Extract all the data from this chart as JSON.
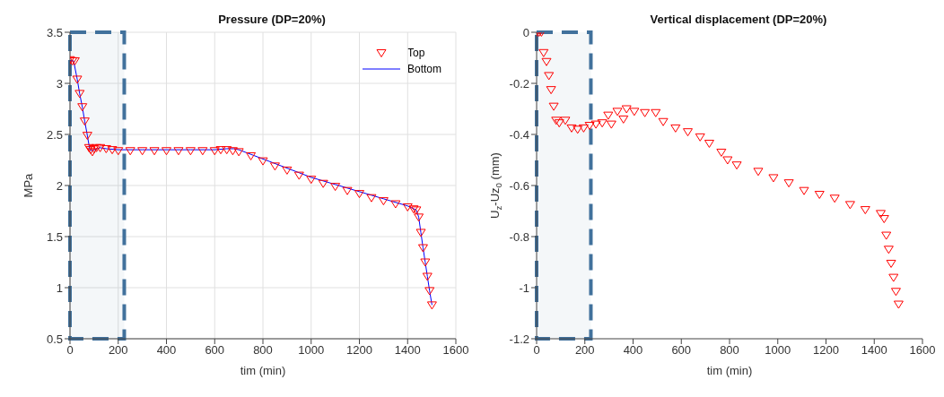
{
  "chart_data": [
    {
      "type": "scatter",
      "title": "Pressure (DP=20%)",
      "xlabel": "tim (min)",
      "ylabel": "MPa",
      "xlim": [
        0,
        1600
      ],
      "xticks": [
        0,
        200,
        400,
        600,
        800,
        1000,
        1200,
        1400,
        1600
      ],
      "ylim": [
        0.5,
        3.5
      ],
      "yticks": [
        0.5,
        1,
        1.5,
        2,
        2.5,
        3,
        3.5
      ],
      "grid": true,
      "legend": "top right",
      "bands": [
        {
          "axis": "x",
          "from": 0,
          "to": 225,
          "color": "#41719c"
        }
      ],
      "series": [
        {
          "name": "Top",
          "marker": "triangle",
          "color": "#ff0000",
          "x": [
            0,
            10,
            20,
            30,
            40,
            51,
            61,
            72,
            79,
            86,
            93,
            100,
            110,
            125,
            150,
            175,
            200,
            250,
            300,
            350,
            400,
            450,
            500,
            550,
            600,
            625,
            650,
            675,
            700,
            750,
            800,
            850,
            900,
            950,
            1000,
            1050,
            1100,
            1150,
            1200,
            1250,
            1300,
            1350,
            1400,
            1425,
            1436,
            1446,
            1455,
            1464,
            1473,
            1482,
            1491,
            1501
          ],
          "values": [
            3.23,
            3.22,
            3.22,
            3.04,
            2.9,
            2.77,
            2.63,
            2.49,
            2.37,
            2.35,
            2.33,
            2.36,
            2.37,
            2.37,
            2.36,
            2.35,
            2.34,
            2.34,
            2.34,
            2.34,
            2.34,
            2.34,
            2.34,
            2.34,
            2.34,
            2.35,
            2.35,
            2.34,
            2.33,
            2.29,
            2.24,
            2.19,
            2.15,
            2.1,
            2.06,
            2.02,
            1.99,
            1.95,
            1.92,
            1.88,
            1.85,
            1.82,
            1.79,
            1.77,
            1.76,
            1.69,
            1.54,
            1.39,
            1.25,
            1.11,
            0.97,
            0.83
          ]
        },
        {
          "name": "Bottom",
          "type": "line",
          "marker": "none",
          "color": "#0000ff",
          "x": [
            0,
            15,
            30,
            40,
            51,
            61,
            72,
            82,
            93,
            100,
            125,
            150,
            200,
            300,
            400,
            500,
            600,
            650,
            680,
            700,
            800,
            900,
            1000,
            1100,
            1200,
            1300,
            1400,
            1436,
            1446,
            1455,
            1464,
            1473,
            1482,
            1491,
            1501
          ],
          "values": [
            3.22,
            3.22,
            3.04,
            2.9,
            2.77,
            2.63,
            2.49,
            2.35,
            2.34,
            2.35,
            2.37,
            2.36,
            2.35,
            2.35,
            2.35,
            2.35,
            2.35,
            2.36,
            2.36,
            2.35,
            2.26,
            2.17,
            2.08,
            2.01,
            1.94,
            1.87,
            1.8,
            1.76,
            1.69,
            1.54,
            1.39,
            1.25,
            1.11,
            0.97,
            0.83
          ]
        }
      ]
    },
    {
      "type": "scatter",
      "title": "Vertical displacement (DP=20%)",
      "xlabel": "tim (min)",
      "ylabel": "U$_{z}$-Uz$_{0}$ (mm)",
      "xlim": [
        0,
        1600
      ],
      "xticks": [
        0,
        200,
        400,
        600,
        800,
        1000,
        1200,
        1400,
        1600
      ],
      "ylim": [
        -1.2,
        0
      ],
      "yticks": [
        -1.2,
        -1,
        -0.8,
        -0.6,
        -0.4,
        -0.2,
        0
      ],
      "marker": "triangle",
      "bands": [
        {
          "axis": "x",
          "from": 0,
          "to": 225,
          "color": "#41719c"
        }
      ],
      "series": [
        {
          "color": "#ff0000",
          "x": [
            0,
            10,
            20,
            29,
            41,
            51,
            60,
            71,
            81,
            94,
            119,
            145,
            170,
            195,
            220,
            246,
            272,
            297,
            310,
            335,
            360,
            373,
            405,
            449,
            494,
            525,
            576,
            627,
            678,
            716,
            766,
            792,
            830,
            919,
            982,
            1046,
            1109,
            1173,
            1236,
            1300,
            1363,
            1427,
            1441,
            1450,
            1460,
            1470,
            1480,
            1490,
            1501
          ],
          "values": [
            0,
            0,
            0,
            -0.08,
            -0.115,
            -0.17,
            -0.225,
            -0.29,
            -0.345,
            -0.355,
            -0.345,
            -0.375,
            -0.38,
            -0.375,
            -0.365,
            -0.36,
            -0.355,
            -0.325,
            -0.36,
            -0.31,
            -0.34,
            -0.3,
            -0.31,
            -0.315,
            -0.315,
            -0.35,
            -0.375,
            -0.39,
            -0.41,
            -0.435,
            -0.47,
            -0.5,
            -0.52,
            -0.545,
            -0.57,
            -0.59,
            -0.62,
            -0.635,
            -0.65,
            -0.675,
            -0.695,
            -0.71,
            -0.73,
            -0.795,
            -0.85,
            -0.905,
            -0.96,
            -1.015,
            -1.065
          ]
        }
      ]
    }
  ]
}
